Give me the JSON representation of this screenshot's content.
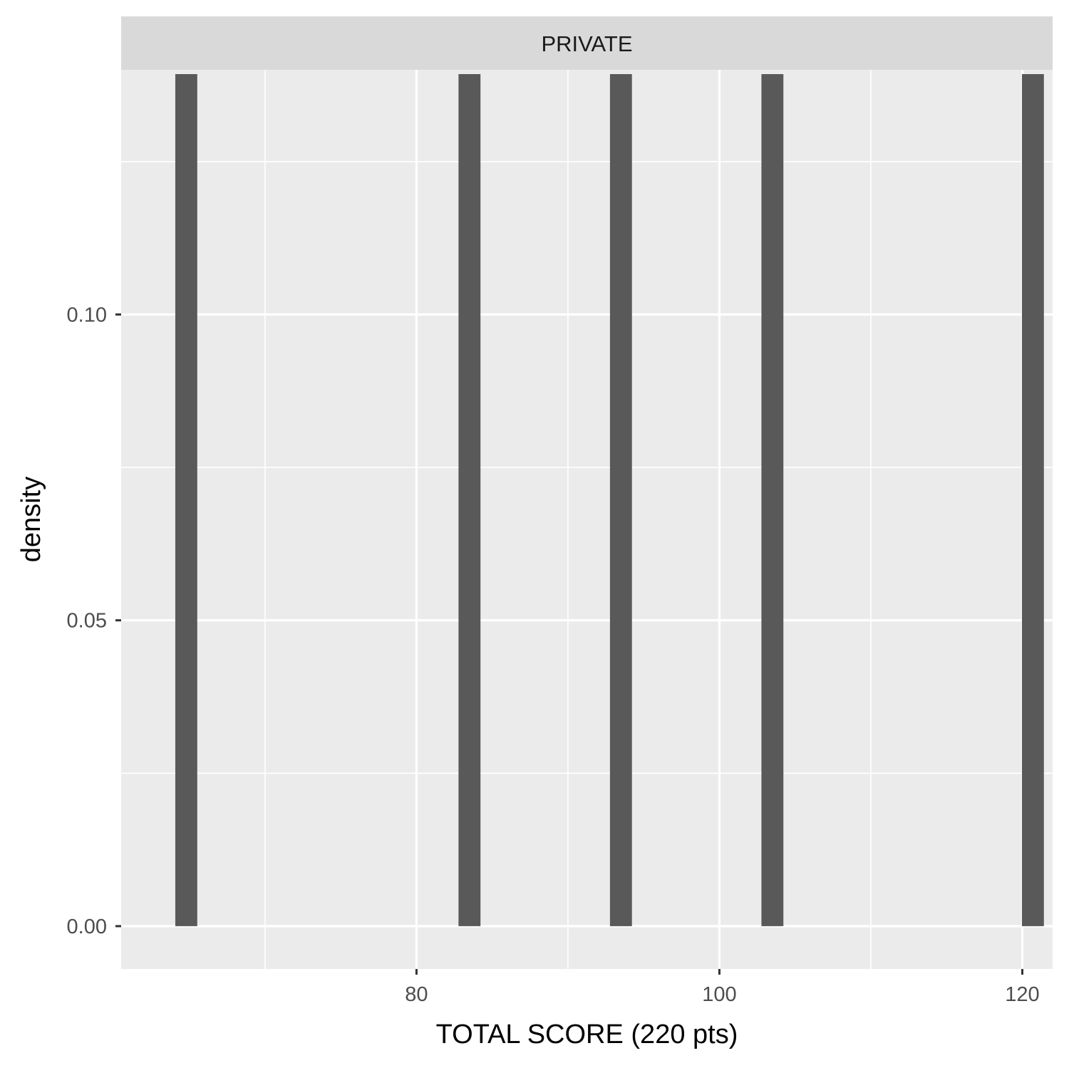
{
  "chart_data": {
    "type": "bar",
    "facet_label": "PRIVATE",
    "xlabel": "TOTAL SCORE (220 pts)",
    "ylabel": "density",
    "xlim": [
      60.5,
      122
    ],
    "ylim": [
      -0.007,
      0.14
    ],
    "x_ticks": [
      80,
      100,
      120
    ],
    "x_tick_labels": [
      "80",
      "100",
      "120"
    ],
    "y_ticks": [
      0.0,
      0.05,
      0.1
    ],
    "y_tick_labels": [
      "0.00",
      "0.05",
      "0.10"
    ],
    "x_minor_ticks": [
      70,
      90,
      110
    ],
    "y_minor_ticks": [
      0.025,
      0.075,
      0.125
    ],
    "bin_width": 1.45,
    "bars": [
      {
        "x": 64.8,
        "value": 0.1393
      },
      {
        "x": 83.5,
        "value": 0.1393
      },
      {
        "x": 93.5,
        "value": 0.1393
      },
      {
        "x": 103.5,
        "value": 0.1393
      },
      {
        "x": 120.7,
        "value": 0.1393
      }
    ],
    "grid": true,
    "colors": {
      "panel_background": "#ebebeb",
      "strip_background": "#d9d9d9",
      "grid_line": "#ffffff",
      "bar_fill": "#595959",
      "tick_mark": "#333333"
    }
  }
}
